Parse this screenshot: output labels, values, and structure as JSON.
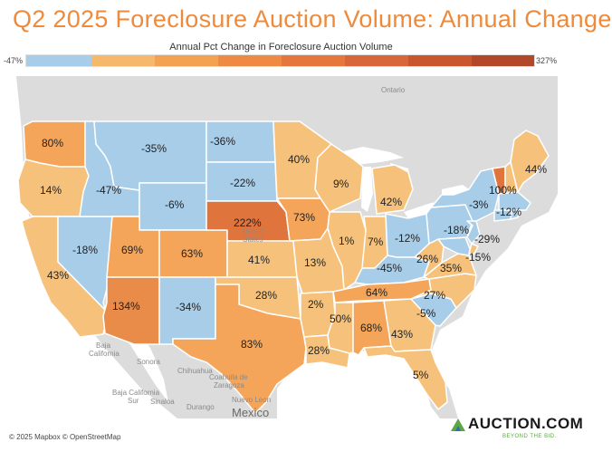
{
  "title": "Q2 2025 Foreclosure Auction Volume: Annual Change",
  "legend": {
    "title": "Annual Pct Change in Foreclosure Auction Volume",
    "min_label": "-47%",
    "max_label": "327%",
    "colors": [
      "#a7cde9",
      "#f6b96b",
      "#f4a150",
      "#ee8a42",
      "#e6773c",
      "#d9663a",
      "#c9562f",
      "#b3472a"
    ]
  },
  "colors": {
    "negative": "#a7cde9",
    "pos_light": "#f6c27b",
    "pos_mid": "#f4a55a",
    "pos_strong": "#ea8c49",
    "pos_stronger": "#e0743d",
    "pos_strongest": "#c95f36",
    "background_land": "#dcdcdc",
    "water": "#ffffff",
    "title": "#ef8a3a"
  },
  "map_labels": {
    "ontario": "Ontario",
    "united_states": "United\nStates",
    "baja_california": "Baja\nCalifornia",
    "baja_california_sur": "Baja California\nSur",
    "sonora": "Sonora",
    "chihuahua": "Chihuahua",
    "coahuila": "Coahuila de\nZaragoza",
    "nuevo_leon": "Nuevo Leon",
    "durango": "Durango",
    "sinaloa": "Sinaloa",
    "mexico": "Mexico"
  },
  "attribution": "© 2025 Mapbox © OpenStreetMap",
  "logo": {
    "name": "AUCTION.COM",
    "tagline": "BEYOND THE BID."
  },
  "states": [
    {
      "id": "WA",
      "label": "80%"
    },
    {
      "id": "OR",
      "label": "14%"
    },
    {
      "id": "CA",
      "label": "43%"
    },
    {
      "id": "ID",
      "label": "-47%"
    },
    {
      "id": "NV",
      "label": "-18%"
    },
    {
      "id": "MT",
      "label": "-35%"
    },
    {
      "id": "WY",
      "label": "-6%"
    },
    {
      "id": "UT",
      "label": "69%"
    },
    {
      "id": "AZ",
      "label": "134%"
    },
    {
      "id": "CO",
      "label": "63%"
    },
    {
      "id": "NM",
      "label": "-34%"
    },
    {
      "id": "ND",
      "label": "-36%"
    },
    {
      "id": "SD",
      "label": "-22%"
    },
    {
      "id": "NE",
      "label": "222%"
    },
    {
      "id": "KS",
      "label": "41%"
    },
    {
      "id": "OK",
      "label": "28%"
    },
    {
      "id": "TX",
      "label": "83%"
    },
    {
      "id": "MN",
      "label": "40%"
    },
    {
      "id": "IA",
      "label": "73%"
    },
    {
      "id": "MO",
      "label": "13%"
    },
    {
      "id": "AR",
      "label": "2%"
    },
    {
      "id": "LA",
      "label": "28%"
    },
    {
      "id": "WI",
      "label": "9%"
    },
    {
      "id": "IL",
      "label": "1%"
    },
    {
      "id": "MI",
      "label": "42%"
    },
    {
      "id": "IN",
      "label": "7%"
    },
    {
      "id": "OH",
      "label": "-12%"
    },
    {
      "id": "KY",
      "label": "-45%"
    },
    {
      "id": "TN",
      "label": "64%"
    },
    {
      "id": "MS",
      "label": "50%"
    },
    {
      "id": "AL",
      "label": "68%"
    },
    {
      "id": "GA",
      "label": "43%"
    },
    {
      "id": "FL",
      "label": "5%"
    },
    {
      "id": "SC",
      "label": "-5%"
    },
    {
      "id": "NC",
      "label": "27%"
    },
    {
      "id": "VA",
      "label": "35%"
    },
    {
      "id": "WV",
      "label": "26%"
    },
    {
      "id": "PA",
      "label": "-18%"
    },
    {
      "id": "NY",
      "label": "-3%"
    },
    {
      "id": "NJ",
      "label": "-29%"
    },
    {
      "id": "MD",
      "label": "-15%"
    },
    {
      "id": "VT",
      "label": "100%"
    },
    {
      "id": "ME",
      "label": "44%"
    },
    {
      "id": "MA",
      "label": "-12%"
    }
  ]
}
